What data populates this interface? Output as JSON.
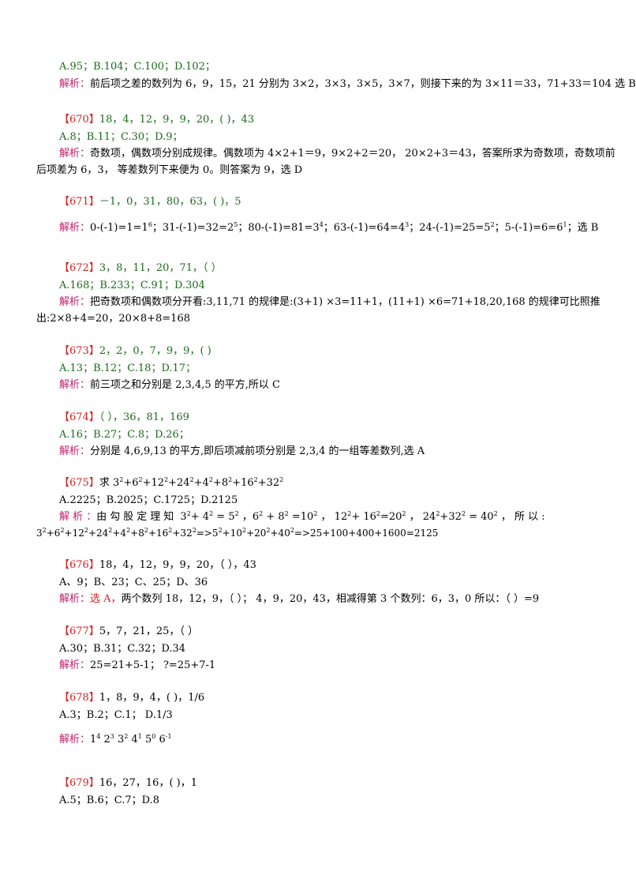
{
  "lines": {
    "l01": "A.95；B.104；C.100；D.102；",
    "l02a": "解析：",
    "l02b": "前后项之差的数列为 6，9，15，21 分别为 3×2，3×3，3×5，3×7，则接下来的为 3×11＝33，71+33＝104 选 B",
    "q670_no": "【670】",
    "q670": "18，4，12，9，9，20，( )，43",
    "q670_opt": "A.8；B.11；C.30；D.9；",
    "q670_a1a": "解析：",
    "q670_a1b": "奇数项，偶数项分别成规律。偶数项为 4×2+1＝9，9×2+2＝20， 20×2+3＝43，答案所求为奇数项，奇数项前",
    "q670_a2": "后项差为 6，3， 等差数列下来便为 0。则答案为 9，选 D",
    "q671_no": "【671】",
    "q671": "－1，0，31，80，63，( )，5",
    "q671_ana_label": "解析：",
    "q672_no": "【672】",
    "q672": "3，8，11，20，71，（ ）",
    "q672_opt": "A.168；B.233；C.91；D.304",
    "q672_a1a": "解析：",
    "q672_a1b": "把奇数项和偶数项分开看:3,11,71 的规律是:(3+1) ×3=11+1，(11+1) ×6=71+18,20,168 的规律可比照推",
    "q672_a2": "出:2×8+4=20，20×8+8=168",
    "q673_no": "【673】",
    "q673": "2，2，0，7，9，9，( )",
    "q673_opt": "A.13；B.12；C.18；D.17；",
    "q673_a1a": "解析：",
    "q673_a1b": "前三项之和分别是 2,3,4,5 的平方,所以 C",
    "q674_no": "【674】",
    "q674": "（ ），36，81，169",
    "q674_opt": "A.16；B.27；C.8；D.26；",
    "q674_a1a": "解析：",
    "q674_a1b": "分别是 4,6,9,13 的平方,即后项减前项分别是 2,3,4 的一组等差数列,选 A",
    "q675_no": "【675】",
    "q675_opt": "A.2225；B.2025；C.1725；D.2125",
    "q675_a1a": "解 析 ：",
    "q676_no": "【676】",
    "q676": "18，4，12，9，9，20，（ ），43",
    "q676_opt": "A、9；B、23；C、25；D、36",
    "q676_a1a": "解析：",
    "q676_a1r": "选 A，",
    "q676_a1b": "两个数列 18，12，9，（ ）； 4，9，20，43，相减得第 3 个数列：6，3，0 所以：（ ）=9",
    "q677_no": "【677】",
    "q677": "5，7，21，25，（ ）",
    "q677_opt": "A.30；B.31；C.32；D.34",
    "q677_a1a": "解析：",
    "q677_a1b": "25=21+5-1； ?=25+7-1",
    "q678_no": "【678】",
    "q678": "1，8，9，4，( )，1/6",
    "q678_opt": "A.3；B.2；C.1； D.1/3",
    "q678_a1a": "解析：",
    "q679_no": "【679】",
    "q679": "16，27，16，( )，1",
    "q679_opt": "A.5；B.6；C.7；D.8"
  }
}
